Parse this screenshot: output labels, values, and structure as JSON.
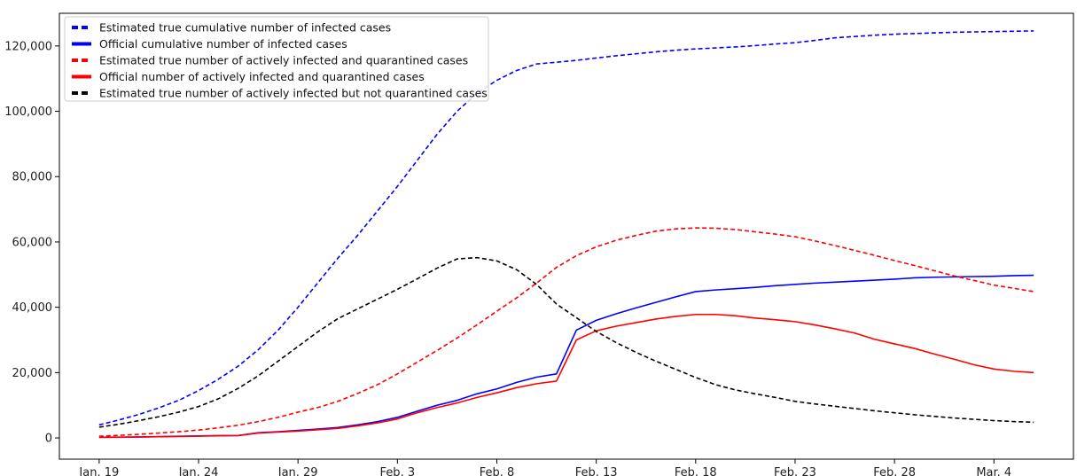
{
  "chart_data": {
    "type": "line",
    "title": "",
    "xlabel": "",
    "ylabel": "",
    "x": [
      "2020-01-19",
      "2020-01-20",
      "2020-01-21",
      "2020-01-22",
      "2020-01-23",
      "2020-01-24",
      "2020-01-25",
      "2020-01-26",
      "2020-01-27",
      "2020-01-28",
      "2020-01-29",
      "2020-01-30",
      "2020-01-31",
      "2020-02-01",
      "2020-02-02",
      "2020-02-03",
      "2020-02-04",
      "2020-02-05",
      "2020-02-06",
      "2020-02-07",
      "2020-02-08",
      "2020-02-09",
      "2020-02-10",
      "2020-02-11",
      "2020-02-12",
      "2020-02-13",
      "2020-02-14",
      "2020-02-15",
      "2020-02-16",
      "2020-02-17",
      "2020-02-18",
      "2020-02-19",
      "2020-02-20",
      "2020-02-21",
      "2020-02-22",
      "2020-02-23",
      "2020-02-24",
      "2020-02-25",
      "2020-02-26",
      "2020-02-27",
      "2020-02-28",
      "2020-02-29",
      "2020-03-01",
      "2020-03-02",
      "2020-03-03",
      "2020-03-04",
      "2020-03-05",
      "2020-03-06"
    ],
    "xticks": {
      "dates": [
        "2020-01-19",
        "2020-01-24",
        "2020-01-29",
        "2020-02-03",
        "2020-02-08",
        "2020-02-13",
        "2020-02-18",
        "2020-02-23",
        "2020-02-28",
        "2020-03-04"
      ],
      "labels": [
        "Jan. 19",
        "Jan. 24",
        "Jan. 29",
        "Feb. 3",
        "Feb. 8",
        "Feb. 13",
        "Feb. 18",
        "Feb. 23",
        "Feb. 28",
        "Mar. 4"
      ]
    },
    "yticks": [
      0,
      20000,
      40000,
      60000,
      80000,
      100000,
      120000
    ],
    "ytick_labels": [
      "0",
      "20,000",
      "40,000",
      "60,000",
      "80,000",
      "100,000",
      "120,000"
    ],
    "ylim": [
      -6500,
      130000
    ],
    "xlim": [
      "2020-01-17",
      "2020-03-08"
    ],
    "grid": false,
    "legend_position": "top-left",
    "series": [
      {
        "name": "Estimated true cumulative number of infected cases",
        "color": "#0000ff",
        "style": "dashed",
        "values": [
          4000,
          5500,
          7200,
          9200,
          11500,
          14500,
          18000,
          22000,
          27000,
          33000,
          40000,
          47500,
          55000,
          62000,
          69500,
          77000,
          85000,
          93000,
          100000,
          105500,
          109500,
          112500,
          114500,
          115000,
          115600,
          116300,
          117000,
          117600,
          118200,
          118700,
          119100,
          119400,
          119700,
          120100,
          120600,
          121000,
          121700,
          122500,
          122900,
          123300,
          123600,
          123800,
          124000,
          124200,
          124300,
          124400,
          124500,
          124600
        ]
      },
      {
        "name": "Official cumulative number of infected cases",
        "color": "#0000ff",
        "style": "solid",
        "values": [
          200,
          250,
          300,
          400,
          500,
          600,
          700,
          750,
          1600,
          1900,
          2300,
          2700,
          3200,
          4000,
          5000,
          6300,
          8200,
          10000,
          11500,
          13500,
          15000,
          17000,
          18600,
          19600,
          33000,
          36000,
          38000,
          39800,
          41500,
          43200,
          44800,
          45300,
          45700,
          46100,
          46600,
          47000,
          47400,
          47700,
          48000,
          48300,
          48600,
          49000,
          49200,
          49300,
          49400,
          49500,
          49700,
          49800
        ]
      },
      {
        "name": "Estimated true number of actively infected and quarantined cases",
        "color": "#ff0000",
        "style": "dashed",
        "values": [
          500,
          800,
          1100,
          1500,
          1900,
          2400,
          3100,
          3900,
          5000,
          6300,
          7900,
          9300,
          11200,
          13600,
          16300,
          19600,
          23200,
          26800,
          30600,
          34600,
          38800,
          42900,
          47400,
          52200,
          55800,
          58500,
          60500,
          62000,
          63300,
          64000,
          64300,
          64200,
          63800,
          63100,
          62400,
          61600,
          60300,
          58900,
          57400,
          55900,
          54300,
          52800,
          51200,
          49600,
          48200,
          46800,
          45800,
          44800
        ]
      },
      {
        "name": "Official number of actively infected and quarantined cases",
        "color": "#ff0000",
        "style": "solid",
        "values": [
          150,
          200,
          250,
          350,
          450,
          550,
          650,
          700,
          1500,
          1800,
          2100,
          2500,
          2900,
          3700,
          4600,
          5800,
          7700,
          9300,
          10700,
          12400,
          13800,
          15400,
          16600,
          17400,
          30000,
          32800,
          34200,
          35300,
          36400,
          37200,
          37800,
          37800,
          37400,
          36700,
          36200,
          35600,
          34600,
          33400,
          32100,
          30200,
          28800,
          27400,
          25700,
          24100,
          22400,
          21100,
          20400,
          20000
        ]
      },
      {
        "name": "Estimated true number of actively infected but not quarantined cases",
        "color": "#000000",
        "style": "dashed",
        "values": [
          3300,
          4200,
          5300,
          6500,
          7900,
          9600,
          12000,
          15200,
          19000,
          23500,
          28000,
          32500,
          36500,
          39500,
          42500,
          45500,
          48700,
          52000,
          54800,
          55200,
          54200,
          51500,
          47000,
          41000,
          36800,
          32600,
          29200,
          26200,
          23500,
          21000,
          18500,
          16300,
          14700,
          13500,
          12400,
          11200,
          10400,
          9700,
          9000,
          8300,
          7700,
          7100,
          6600,
          6100,
          5700,
          5300,
          5000,
          4800
        ]
      }
    ]
  }
}
